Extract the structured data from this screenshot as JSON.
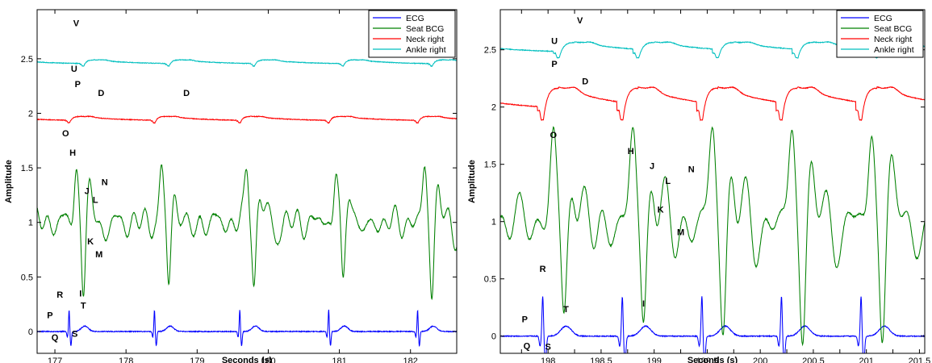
{
  "chart_data": [
    {
      "type": "line",
      "xlabel": "Seconds (s)",
      "ylabel": "Amplitude",
      "xlim": [
        176.75,
        182.65
      ],
      "ylim": [
        -0.2,
        2.95
      ],
      "xticks": [
        177,
        178,
        179,
        180,
        181,
        182
      ],
      "yticks": [
        0,
        0.5,
        1,
        1.5,
        2,
        2.5
      ],
      "ytick_labels": [
        "0",
        "0.5",
        "1",
        "1.5",
        "2",
        "2.5"
      ],
      "grid": false,
      "legend_position": "top-right",
      "series": [
        {
          "name": "ECG",
          "color": "#0000ff",
          "kind": "ecg",
          "baseline": 0.0,
          "scale": 1.0,
          "beats": [
            177.2,
            178.4,
            179.6,
            180.85,
            182.1
          ],
          "x": [
            176.75,
            177.2,
            178.4,
            179.6,
            180.85,
            182.1,
            182.65
          ],
          "y": [
            0.0,
            0.2,
            0.2,
            0.2,
            0.2,
            0.2,
            0.0
          ]
        },
        {
          "name": "Seat BCG",
          "color": "#008000",
          "kind": "bcg",
          "baseline": 1.0,
          "scale": 1.0,
          "beats": [
            177.2,
            178.4,
            179.6,
            180.85,
            182.1
          ],
          "x": [
            177.3,
            177.38,
            177.45,
            177.55,
            177.62,
            177.7
          ],
          "y": [
            1.5,
            0.38,
            1.32,
            1.22,
            0.82,
            1.32
          ]
        },
        {
          "name": "Neck right",
          "color": "#ff0000",
          "kind": "pulse",
          "baseline": 1.93,
          "scale": 0.26,
          "beats": [
            177.2,
            178.4,
            179.6,
            180.85,
            182.1
          ],
          "x": [
            177.2,
            177.45,
            178.7,
            179.95,
            181.15,
            182.3
          ],
          "y": [
            1.88,
            2.14,
            2.2,
            2.2,
            2.15,
            2.17
          ]
        },
        {
          "name": "Ankle right",
          "color": "#00bfbf",
          "kind": "pulse",
          "baseline": 2.45,
          "scale": 0.25,
          "beats": [
            177.4,
            178.6,
            179.8,
            181.05,
            182.3
          ],
          "x": [
            177.4,
            177.55,
            178.7,
            179.95,
            181.15,
            182.4
          ],
          "y": [
            2.46,
            2.67,
            2.7,
            2.7,
            2.6,
            2.58
          ]
        }
      ],
      "annotations": [
        {
          "text": "V",
          "x": 177.3,
          "y": 2.8
        },
        {
          "text": "U",
          "x": 177.27,
          "y": 2.38
        },
        {
          "text": "P",
          "x": 177.32,
          "y": 2.24
        },
        {
          "text": "D",
          "x": 177.65,
          "y": 2.16
        },
        {
          "text": "D",
          "x": 178.85,
          "y": 2.16
        },
        {
          "text": "O",
          "x": 177.15,
          "y": 1.79
        },
        {
          "text": "H",
          "x": 177.25,
          "y": 1.61
        },
        {
          "text": "J",
          "x": 177.45,
          "y": 1.26
        },
        {
          "text": "N",
          "x": 177.7,
          "y": 1.34
        },
        {
          "text": "L",
          "x": 177.57,
          "y": 1.18
        },
        {
          "text": "K",
          "x": 177.5,
          "y": 0.8
        },
        {
          "text": "M",
          "x": 177.62,
          "y": 0.68
        },
        {
          "text": "I",
          "x": 177.36,
          "y": 0.32
        },
        {
          "text": "R",
          "x": 177.07,
          "y": 0.31
        },
        {
          "text": "T",
          "x": 177.4,
          "y": 0.21
        },
        {
          "text": "P",
          "x": 176.93,
          "y": 0.12
        },
        {
          "text": "Q",
          "x": 177.0,
          "y": -0.08
        },
        {
          "text": "S",
          "x": 177.28,
          "y": -0.05
        }
      ]
    },
    {
      "type": "line",
      "xlabel": "Seconds (s)",
      "ylabel": "Amplitude",
      "xlim": [
        197.55,
        201.55
      ],
      "ylim": [
        -0.15,
        2.85
      ],
      "xticks": [
        197.75,
        198,
        198.25,
        198.5,
        198.75,
        199,
        199.25,
        199.5,
        199.75,
        200,
        200.25,
        200.5,
        200.75,
        201,
        201.25,
        201.5
      ],
      "xtick_labels": [
        "",
        "198",
        "",
        "198.5",
        "",
        "199",
        "",
        "199.5",
        "",
        "200",
        "",
        "200.5",
        "",
        "201",
        "",
        "201.5"
      ],
      "yticks": [
        0,
        0.5,
        1,
        1.5,
        2,
        2.5
      ],
      "ytick_labels": [
        "0",
        "0.5",
        "1",
        "1.5",
        "2",
        "2.5"
      ],
      "grid": false,
      "legend_position": "top-right",
      "series": [
        {
          "name": "ECG",
          "color": "#0000ff",
          "kind": "ecg",
          "baseline": 0.0,
          "scale": 1.75,
          "beats": [
            197.95,
            198.7,
            199.45,
            200.2,
            200.95
          ],
          "x": [
            197.55,
            197.95,
            198.7,
            199.45,
            200.2,
            200.95,
            201.55
          ],
          "y": [
            0.0,
            0.35,
            0.33,
            0.33,
            0.35,
            0.33,
            -0.02
          ]
        },
        {
          "name": "Seat BCG",
          "color": "#008000",
          "kind": "bcg",
          "baseline": 1.0,
          "scale": 1.5,
          "beats": [
            197.95,
            198.7,
            199.45,
            200.2,
            200.95
          ],
          "x": [
            198.08,
            198.15,
            198.82,
            198.9,
            199.02,
            199.12,
            199.2,
            199.35
          ],
          "y": [
            1.62,
            0.27,
            1.46,
            0.3,
            1.36,
            1.0,
            0.9,
            1.32
          ]
        },
        {
          "name": "Neck right",
          "color": "#ff0000",
          "kind": "pulse",
          "baseline": 1.97,
          "scale": 1.25,
          "beats": [
            197.95,
            198.7,
            199.45,
            200.2,
            200.95
          ],
          "x": [
            197.55,
            198.08,
            198.12,
            198.86,
            199.62,
            200.35,
            201.1,
            201.55
          ],
          "y": [
            2.0,
            1.82,
            2.3,
            2.25,
            2.3,
            2.32,
            2.3,
            1.88
          ]
        },
        {
          "name": "Ankle right",
          "color": "#00bfbf",
          "kind": "pulse",
          "baseline": 2.47,
          "scale": 0.6,
          "beats": [
            198.1,
            198.85,
            199.6,
            200.35,
            201.1
          ],
          "x": [
            198.05,
            198.22,
            198.95,
            199.7,
            200.45,
            201.2
          ],
          "y": [
            2.47,
            2.62,
            2.6,
            2.59,
            2.59,
            2.59
          ]
        }
      ],
      "annotations": [
        {
          "text": "V",
          "x": 198.3,
          "y": 2.73
        },
        {
          "text": "U",
          "x": 198.06,
          "y": 2.55
        },
        {
          "text": "P",
          "x": 198.06,
          "y": 2.35
        },
        {
          "text": "D",
          "x": 198.35,
          "y": 2.2
        },
        {
          "text": "O",
          "x": 198.05,
          "y": 1.73
        },
        {
          "text": "H",
          "x": 198.78,
          "y": 1.59
        },
        {
          "text": "J",
          "x": 198.98,
          "y": 1.46
        },
        {
          "text": "N",
          "x": 199.35,
          "y": 1.43
        },
        {
          "text": "L",
          "x": 199.13,
          "y": 1.33
        },
        {
          "text": "K",
          "x": 199.06,
          "y": 1.08
        },
        {
          "text": "M",
          "x": 199.25,
          "y": 0.88
        },
        {
          "text": "R",
          "x": 197.95,
          "y": 0.56
        },
        {
          "text": "I",
          "x": 198.9,
          "y": 0.26
        },
        {
          "text": "T",
          "x": 198.17,
          "y": 0.21
        },
        {
          "text": "P",
          "x": 197.78,
          "y": 0.12
        },
        {
          "text": "Q",
          "x": 197.8,
          "y": -0.11
        },
        {
          "text": "S",
          "x": 198.0,
          "y": -0.12
        }
      ]
    }
  ]
}
